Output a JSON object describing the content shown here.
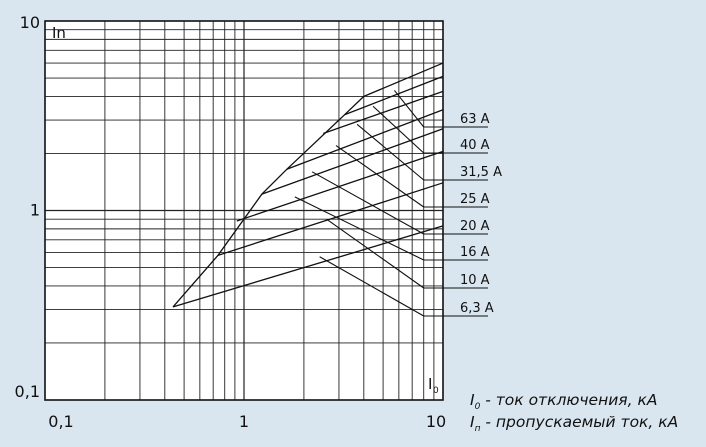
{
  "chart_data": {
    "type": "line",
    "x_scale": "log",
    "y_scale": "log",
    "xlim": [
      0.1,
      10
    ],
    "ylim": [
      0.1,
      10
    ],
    "grid": true,
    "x_ticks": [
      "0,1",
      "1",
      "10"
    ],
    "y_ticks": [
      "0,1",
      "1",
      "10"
    ],
    "x_axis_label": "I0",
    "y_axis_label": "In",
    "envelope": {
      "x": [
        0.44,
        0.74,
        1.23,
        1.64,
        3.2,
        4.0
      ],
      "y": [
        0.31,
        0.58,
        1.22,
        1.65,
        3.2,
        4.0
      ]
    },
    "series": [
      {
        "name": "63 A",
        "x": [
          4.0,
          10.0
        ],
        "y": [
          4.0,
          6.0
        ],
        "label_x": 5.7,
        "label_y": 4.3
      },
      {
        "name": "40 A",
        "x": [
          3.2,
          10.0
        ],
        "y": [
          3.2,
          5.1
        ],
        "label_x": 4.45,
        "label_y": 3.55
      },
      {
        "name": "31,5 A",
        "x": [
          2.5,
          10.0
        ],
        "y": [
          2.55,
          4.25
        ],
        "label_x": 3.7,
        "label_y": 2.85
      },
      {
        "name": "25 A",
        "x": [
          1.64,
          10.0
        ],
        "y": [
          1.65,
          3.4
        ],
        "label_x": 2.9,
        "label_y": 2.2
      },
      {
        "name": "20 A",
        "x": [
          1.23,
          10.0
        ],
        "y": [
          1.22,
          2.7
        ],
        "label_x": 2.2,
        "label_y": 1.6
      },
      {
        "name": "16 A",
        "x": [
          0.92,
          10.0
        ],
        "y": [
          0.88,
          2.05
        ],
        "label_x": 1.8,
        "label_y": 1.18
      },
      {
        "name": "10 A",
        "x": [
          0.74,
          10.0
        ],
        "y": [
          0.58,
          1.4
        ],
        "label_x": 2.6,
        "label_y": 0.9
      },
      {
        "name": "6,3 A",
        "x": [
          0.44,
          10.0
        ],
        "y": [
          0.31,
          0.83
        ],
        "label_x": 2.4,
        "label_y": 0.57
      }
    ],
    "label_anchor_x": 8.0,
    "annotations": [
      {
        "key": "I0",
        "text": "- ток отключения, кА"
      },
      {
        "key": "In",
        "text": "- пропускаемый ток, кА"
      }
    ]
  }
}
